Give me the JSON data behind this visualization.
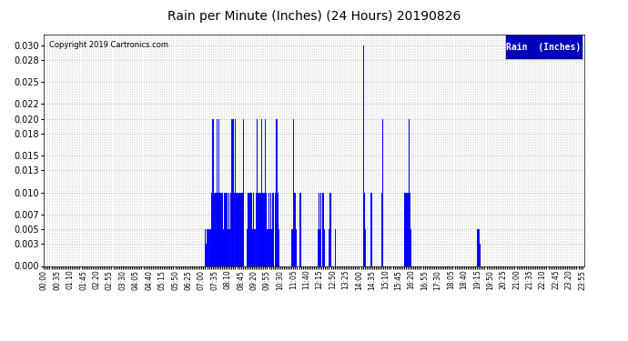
{
  "title": "Rain per Minute (Inches) (24 Hours) 20190826",
  "copyright_text": "Copyright 2019 Cartronics.com",
  "legend_label": "Rain  (Inches)",
  "line_color": "#0000FF",
  "legend_bg": "#0000BB",
  "legend_text_color": "#FFFFFF",
  "background_color": "#FFFFFF",
  "grid_color": "#BBBBBB",
  "ylim": [
    0.0,
    0.0315
  ],
  "yticks": [
    0.0,
    0.003,
    0.005,
    0.007,
    0.01,
    0.013,
    0.015,
    0.018,
    0.02,
    0.022,
    0.025,
    0.028,
    0.03
  ],
  "total_minutes": 1440,
  "rain_data": [
    [
      428,
      0.005
    ],
    [
      429,
      0.003
    ],
    [
      430,
      0.005
    ],
    [
      431,
      0.003
    ],
    [
      432,
      0.003
    ],
    [
      433,
      0.005
    ],
    [
      434,
      0.003
    ],
    [
      435,
      0.005
    ],
    [
      436,
      0.005
    ],
    [
      437,
      0.003
    ],
    [
      438,
      0.005
    ],
    [
      440,
      0.003
    ],
    [
      441,
      0.005
    ],
    [
      442,
      0.003
    ],
    [
      443,
      0.005
    ],
    [
      444,
      0.005
    ],
    [
      445,
      0.01
    ],
    [
      446,
      0.01
    ],
    [
      447,
      0.01
    ],
    [
      448,
      0.02
    ],
    [
      449,
      0.01
    ],
    [
      450,
      0.02
    ],
    [
      451,
      0.01
    ],
    [
      452,
      0.01
    ],
    [
      453,
      0.01
    ],
    [
      454,
      0.01
    ],
    [
      455,
      0.005
    ],
    [
      456,
      0.01
    ],
    [
      457,
      0.005
    ],
    [
      458,
      0.01
    ],
    [
      459,
      0.005
    ],
    [
      460,
      0.01
    ],
    [
      461,
      0.02
    ],
    [
      462,
      0.01
    ],
    [
      463,
      0.01
    ],
    [
      464,
      0.02
    ],
    [
      465,
      0.01
    ],
    [
      466,
      0.01
    ],
    [
      467,
      0.01
    ],
    [
      468,
      0.01
    ],
    [
      469,
      0.005
    ],
    [
      470,
      0.01
    ],
    [
      471,
      0.005
    ],
    [
      472,
      0.005
    ],
    [
      473,
      0.01
    ],
    [
      474,
      0.01
    ],
    [
      475,
      0.005
    ],
    [
      476,
      0.01
    ],
    [
      477,
      0.005
    ],
    [
      478,
      0.005
    ],
    [
      479,
      0.005
    ],
    [
      480,
      0.01
    ],
    [
      481,
      0.005
    ],
    [
      482,
      0.01
    ],
    [
      483,
      0.01
    ],
    [
      484,
      0.01
    ],
    [
      485,
      0.01
    ],
    [
      486,
      0.005
    ],
    [
      487,
      0.01
    ],
    [
      488,
      0.005
    ],
    [
      489,
      0.005
    ],
    [
      490,
      0.005
    ],
    [
      491,
      0.01
    ],
    [
      492,
      0.01
    ],
    [
      493,
      0.01
    ],
    [
      495,
      0.005
    ],
    [
      497,
      0.01
    ],
    [
      498,
      0.01
    ],
    [
      499,
      0.01
    ],
    [
      500,
      0.02
    ],
    [
      501,
      0.02
    ],
    [
      502,
      0.01
    ],
    [
      503,
      0.02
    ],
    [
      504,
      0.02
    ],
    [
      505,
      0.02
    ],
    [
      506,
      0.01
    ],
    [
      510,
      0.02
    ],
    [
      511,
      0.01
    ],
    [
      512,
      0.01
    ],
    [
      513,
      0.01
    ],
    [
      514,
      0.01
    ],
    [
      515,
      0.01
    ],
    [
      516,
      0.005
    ],
    [
      517,
      0.01
    ],
    [
      518,
      0.01
    ],
    [
      520,
      0.01
    ],
    [
      521,
      0.01
    ],
    [
      522,
      0.005
    ],
    [
      523,
      0.005
    ],
    [
      524,
      0.01
    ],
    [
      525,
      0.005
    ],
    [
      526,
      0.01
    ],
    [
      527,
      0.01
    ],
    [
      528,
      0.01
    ],
    [
      529,
      0.01
    ],
    [
      530,
      0.02
    ],
    [
      531,
      0.005
    ],
    [
      540,
      0.005
    ],
    [
      541,
      0.005
    ],
    [
      542,
      0.01
    ],
    [
      543,
      0.01
    ],
    [
      544,
      0.01
    ],
    [
      545,
      0.01
    ],
    [
      546,
      0.01
    ],
    [
      547,
      0.005
    ],
    [
      548,
      0.01
    ],
    [
      549,
      0.01
    ],
    [
      550,
      0.01
    ],
    [
      551,
      0.005
    ],
    [
      552,
      0.005
    ],
    [
      553,
      0.01
    ],
    [
      554,
      0.005
    ],
    [
      556,
      0.005
    ],
    [
      557,
      0.01
    ],
    [
      558,
      0.005
    ],
    [
      560,
      0.005
    ],
    [
      562,
      0.005
    ],
    [
      565,
      0.01
    ],
    [
      566,
      0.02
    ],
    [
      567,
      0.01
    ],
    [
      568,
      0.01
    ],
    [
      570,
      0.01
    ],
    [
      571,
      0.005
    ],
    [
      572,
      0.005
    ],
    [
      573,
      0.01
    ],
    [
      574,
      0.01
    ],
    [
      575,
      0.01
    ],
    [
      576,
      0.01
    ],
    [
      577,
      0.01
    ],
    [
      578,
      0.01
    ],
    [
      579,
      0.01
    ],
    [
      580,
      0.02
    ],
    [
      581,
      0.01
    ],
    [
      582,
      0.01
    ],
    [
      583,
      0.01
    ],
    [
      584,
      0.01
    ],
    [
      585,
      0.005
    ],
    [
      586,
      0.01
    ],
    [
      587,
      0.01
    ],
    [
      588,
      0.01
    ],
    [
      589,
      0.02
    ],
    [
      590,
      0.01
    ],
    [
      591,
      0.01
    ],
    [
      592,
      0.01
    ],
    [
      595,
      0.005
    ],
    [
      596,
      0.005
    ],
    [
      597,
      0.005
    ],
    [
      598,
      0.01
    ],
    [
      599,
      0.005
    ],
    [
      600,
      0.005
    ],
    [
      601,
      0.005
    ],
    [
      602,
      0.005
    ],
    [
      603,
      0.01
    ],
    [
      604,
      0.005
    ],
    [
      605,
      0.005
    ],
    [
      606,
      0.005
    ],
    [
      607,
      0.005
    ],
    [
      608,
      0.01
    ],
    [
      609,
      0.005
    ],
    [
      610,
      0.005
    ],
    [
      611,
      0.01
    ],
    [
      612,
      0.005
    ],
    [
      616,
      0.01
    ],
    [
      617,
      0.02
    ],
    [
      618,
      0.01
    ],
    [
      619,
      0.01
    ],
    [
      620,
      0.02
    ],
    [
      621,
      0.01
    ],
    [
      622,
      0.01
    ],
    [
      623,
      0.005
    ],
    [
      624,
      0.01
    ],
    [
      625,
      0.005
    ],
    [
      660,
      0.005
    ],
    [
      661,
      0.005
    ],
    [
      662,
      0.005
    ],
    [
      663,
      0.005
    ],
    [
      664,
      0.02
    ],
    [
      665,
      0.005
    ],
    [
      666,
      0.01
    ],
    [
      667,
      0.005
    ],
    [
      668,
      0.01
    ],
    [
      669,
      0.01
    ],
    [
      670,
      0.01
    ],
    [
      671,
      0.005
    ],
    [
      680,
      0.01
    ],
    [
      681,
      0.01
    ],
    [
      682,
      0.01
    ],
    [
      683,
      0.01
    ],
    [
      730,
      0.005
    ],
    [
      731,
      0.005
    ],
    [
      732,
      0.005
    ],
    [
      733,
      0.01
    ],
    [
      734,
      0.005
    ],
    [
      735,
      0.005
    ],
    [
      736,
      0.01
    ],
    [
      737,
      0.005
    ],
    [
      738,
      0.01
    ],
    [
      741,
      0.01
    ],
    [
      742,
      0.005
    ],
    [
      743,
      0.01
    ],
    [
      744,
      0.01
    ],
    [
      745,
      0.01
    ],
    [
      746,
      0.005
    ],
    [
      760,
      0.005
    ],
    [
      761,
      0.01
    ],
    [
      762,
      0.01
    ],
    [
      763,
      0.01
    ],
    [
      764,
      0.01
    ],
    [
      775,
      0.005
    ],
    [
      850,
      0.03
    ],
    [
      851,
      0.03
    ],
    [
      852,
      0.02
    ],
    [
      853,
      0.01
    ],
    [
      854,
      0.01
    ],
    [
      855,
      0.005
    ],
    [
      870,
      0.01
    ],
    [
      871,
      0.01
    ],
    [
      872,
      0.01
    ],
    [
      873,
      0.005
    ],
    [
      900,
      0.01
    ],
    [
      901,
      0.01
    ],
    [
      902,
      0.02
    ],
    [
      903,
      0.005
    ],
    [
      960,
      0.005
    ],
    [
      961,
      0.01
    ],
    [
      962,
      0.01
    ],
    [
      963,
      0.01
    ],
    [
      964,
      0.01
    ],
    [
      965,
      0.01
    ],
    [
      966,
      0.005
    ],
    [
      967,
      0.01
    ],
    [
      968,
      0.01
    ],
    [
      969,
      0.01
    ],
    [
      970,
      0.005
    ],
    [
      971,
      0.005
    ],
    [
      972,
      0.02
    ],
    [
      973,
      0.01
    ],
    [
      974,
      0.005
    ],
    [
      975,
      0.01
    ],
    [
      976,
      0.01
    ],
    [
      977,
      0.005
    ],
    [
      978,
      0.005
    ],
    [
      1155,
      0.005
    ],
    [
      1156,
      0.005
    ],
    [
      1157,
      0.005
    ],
    [
      1158,
      0.005
    ],
    [
      1159,
      0.005
    ],
    [
      1160,
      0.003
    ],
    [
      1161,
      0.003
    ],
    [
      1162,
      0.003
    ]
  ]
}
